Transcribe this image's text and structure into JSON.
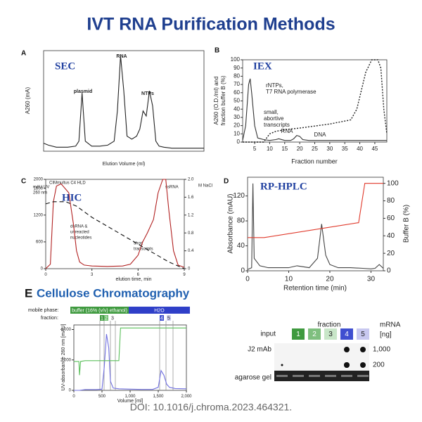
{
  "title": "IVT RNA Purification Methods",
  "chart_data": [
    {
      "type": "line",
      "panel": "A",
      "title": "SEC",
      "x_label": "Elution Volume (ml)",
      "y_label": [
        "A260 (mA)"
      ],
      "xlim": [
        0,
        100
      ],
      "ylim": [
        0,
        100
      ],
      "annotations": [
        "plasmid",
        "RNA",
        "NTPs"
      ],
      "series": [
        {
          "color": "#222222",
          "dash": "none",
          "x": [
            0,
            3,
            8,
            15,
            20,
            22,
            24,
            26,
            30,
            35,
            40,
            44,
            46,
            48,
            50,
            52,
            55,
            58,
            60,
            62,
            64,
            66,
            68,
            70,
            72,
            75,
            80,
            90,
            100
          ],
          "values": [
            8,
            6,
            4,
            4,
            5,
            10,
            58,
            10,
            5,
            5,
            6,
            10,
            40,
            95,
            60,
            15,
            12,
            15,
            22,
            40,
            35,
            60,
            45,
            10,
            5,
            4,
            3,
            3,
            3
          ]
        }
      ]
    },
    {
      "type": "line",
      "panel": "B",
      "title": "IEX",
      "x_label": "Fraction number",
      "y_label": [
        "A260 (O.D./ml) and",
        "fraction buffer B (%)"
      ],
      "xlim": [
        1,
        49
      ],
      "ylim": [
        0,
        100
      ],
      "xticks": [
        5,
        10,
        15,
        20,
        25,
        30,
        35,
        40,
        45
      ],
      "yticks": [
        0,
        10,
        20,
        30,
        40,
        50,
        60,
        70,
        80,
        90,
        100
      ],
      "annotations": [
        "rNTPs,",
        "T7 RNA polymerase",
        "small,",
        "abortive",
        "transcripts",
        "RNA",
        "DNA"
      ],
      "series": [
        {
          "color": "#333333",
          "dash": "none",
          "x": [
            1,
            2,
            3,
            3.5,
            4,
            5,
            6,
            8,
            10,
            12,
            13,
            15,
            17,
            18,
            19,
            20,
            21,
            23,
            25,
            28,
            30,
            35,
            40,
            45,
            49
          ],
          "values": [
            2,
            20,
            70,
            77,
            60,
            20,
            5,
            3,
            2,
            3,
            4,
            2,
            2,
            4,
            8,
            7,
            3,
            2,
            2,
            2,
            2,
            2,
            2,
            2,
            2
          ]
        },
        {
          "color": "#222222",
          "dash": "2 2",
          "x": [
            1,
            8,
            10,
            12,
            15,
            20,
            30,
            37,
            39,
            42,
            44,
            46,
            47,
            48,
            49
          ],
          "values": [
            0,
            0,
            10,
            13,
            15,
            17,
            22,
            27,
            40,
            85,
            100,
            100,
            90,
            40,
            10
          ]
        }
      ]
    },
    {
      "type": "line",
      "panel": "C",
      "title": "HIC",
      "x_label": "elution time, min",
      "y_label": [
        "mAU UV",
        "260 nm"
      ],
      "y2_label": "M NaCl",
      "xlim": [
        0,
        9
      ],
      "ylim": [
        0,
        2000
      ],
      "y2lim": [
        0,
        2
      ],
      "xticks": [
        0,
        3,
        6,
        9
      ],
      "yticks": [
        0,
        600,
        1200,
        1800,
        2000
      ],
      "y2ticks": [
        0,
        0.4,
        0.8,
        1.2,
        1.6,
        {
          "value": 2,
          "label": "2.0"
        }
      ],
      "annotations": [
        "CIMmultus C4 HLD",
        "dsRNA &",
        "unreacted",
        "nucleotides",
        "short",
        "transcripts",
        "ssRNA"
      ],
      "series": [
        {
          "color": "#b22222",
          "dash": "none",
          "x": [
            0,
            0.3,
            0.5,
            0.7,
            1,
            1.5,
            1.8,
            2,
            2.2,
            2.5,
            3,
            4,
            5,
            5.5,
            6,
            6.3,
            6.6,
            7,
            7.3,
            7.6,
            7.8,
            8,
            8.3,
            8.6,
            9
          ],
          "values": [
            0,
            100,
            1500,
            1850,
            1900,
            1700,
            1000,
            400,
            150,
            80,
            60,
            50,
            60,
            100,
            300,
            600,
            800,
            1100,
            1700,
            2000,
            2000,
            1300,
            400,
            80,
            30
          ]
        },
        {
          "color": "#111111",
          "dash": "6 4",
          "axis": "y2",
          "x": [
            0,
            0.5,
            1.3,
            2,
            3,
            4,
            5,
            6,
            7,
            8,
            9
          ],
          "values": [
            1.45,
            1.5,
            1.5,
            1.4,
            1.15,
            0.95,
            0.75,
            0.55,
            0.35,
            0.15,
            0
          ]
        }
      ]
    },
    {
      "type": "line",
      "panel": "D",
      "title": "RP-HPLC",
      "x_label": "Retention time (min)",
      "y_label": [
        "Absorbance (mAU)"
      ],
      "y2_label": "Buffer B (%)",
      "xlim": [
        0,
        33
      ],
      "ylim": [
        0,
        150
      ],
      "y2lim": [
        0,
        107
      ],
      "xticks": [
        0,
        10,
        20,
        30
      ],
      "yticks": [
        0,
        40,
        80,
        120
      ],
      "y2ticks": [
        0,
        20,
        40,
        60,
        80,
        100
      ],
      "annotations": [],
      "series": [
        {
          "color": "#444444",
          "dash": "none",
          "x": [
            0,
            1,
            1.3,
            1.6,
            3,
            5,
            10,
            12,
            15,
            17,
            18,
            18.5,
            19,
            20,
            22,
            25,
            28,
            30,
            31,
            32,
            33
          ],
          "values": [
            2,
            5,
            140,
            20,
            8,
            5,
            5,
            8,
            5,
            20,
            75,
            50,
            25,
            10,
            5,
            5,
            4,
            3,
            4,
            10,
            4
          ]
        },
        {
          "color": "#e0392b",
          "dash": "none",
          "axis": "y2",
          "x": [
            0,
            4,
            27,
            28.5,
            33
          ],
          "values": [
            38,
            38,
            55,
            100,
            100
          ]
        }
      ]
    },
    {
      "type": "line",
      "panel": "E",
      "title": "Cellulose Chromatography",
      "x_label": "Volume [ml]",
      "y_label": [
        "UV-absorbance 260 nm [mAU]"
      ],
      "xlim": [
        0,
        2000
      ],
      "ylim": [
        0,
        4300
      ],
      "xticks": [
        0,
        500,
        {
          "value": 1000,
          "label": "1,000"
        },
        {
          "value": 1500,
          "label": "1,500"
        },
        {
          "value": 2000,
          "label": "2,000"
        }
      ],
      "yticks": [
        0,
        {
          "value": 2000,
          "label": "2,000"
        },
        {
          "value": 4000,
          "label": "4,000"
        }
      ],
      "mobile_phase_label": "mobile phase:",
      "phases": [
        "buffer (16% (v/v) ethanol)",
        "H2O"
      ],
      "fraction_label": "fraction:",
      "fractions": [
        "1",
        "2",
        "3",
        "4",
        "5"
      ],
      "annotations": [],
      "series": [
        {
          "color": "#7070e0",
          "dash": "none",
          "x": [
            0,
            100,
            200,
            400,
            500,
            540,
            580,
            620,
            650,
            700,
            800,
            1000,
            1200,
            1400,
            1500,
            1550,
            1600,
            1650,
            1700,
            1800,
            2000
          ],
          "values": [
            0,
            0,
            50,
            50,
            80,
            1500,
            3700,
            2800,
            600,
            150,
            100,
            80,
            60,
            60,
            200,
            1300,
            1000,
            400,
            200,
            120,
            100
          ]
        },
        {
          "color": "#5cc05c",
          "dash": "none",
          "x": [
            0,
            90,
            100,
            120,
            200,
            800,
            830,
            2000
          ],
          "values": [
            1900,
            1900,
            1000,
            1900,
            1950,
            1950,
            4100,
            4100
          ]
        }
      ]
    }
  ],
  "dot_blot": {
    "header": "fraction",
    "input": "input",
    "fractions": [
      "1",
      "2",
      "3",
      "4",
      "5"
    ],
    "unit": [
      "mRNA",
      "[ng]"
    ],
    "rows": [
      "J2 mAb",
      "agarose gel"
    ],
    "amounts": [
      "1,000",
      "200"
    ]
  },
  "doi": "DOI: 10.1016/j.chroma.2023.464321."
}
